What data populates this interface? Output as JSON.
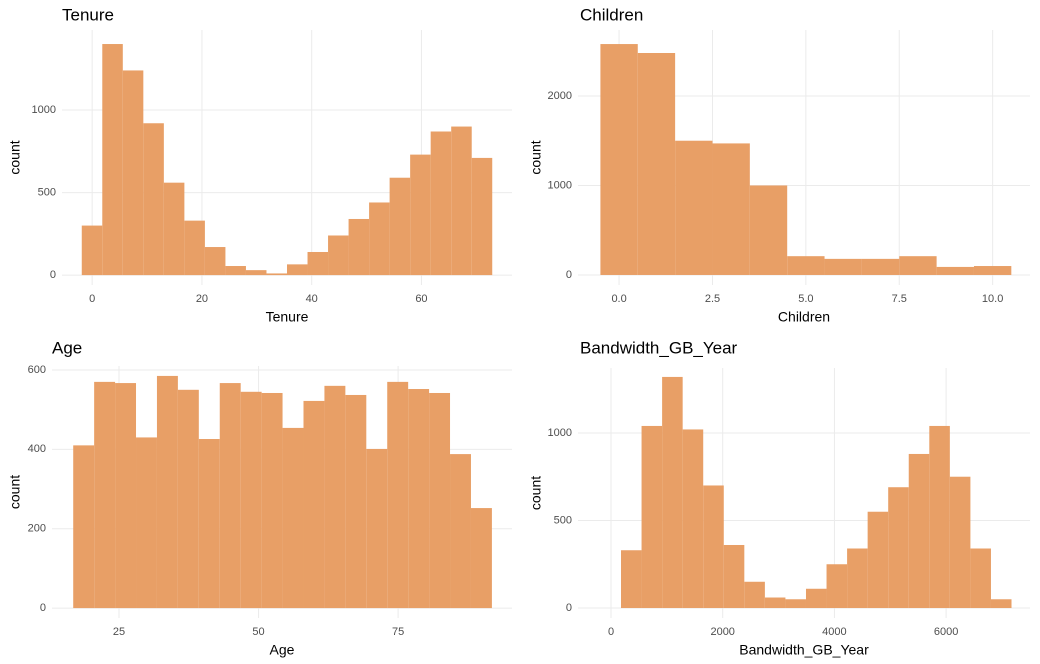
{
  "chart_data": [
    {
      "type": "histogram",
      "title": "Tenure",
      "x_label": "Tenure",
      "y_label": "count",
      "color": "#e89f66",
      "grid": true,
      "bins": [
        -1.9,
        1.84,
        5.58,
        9.32,
        13.06,
        16.8,
        20.54,
        24.28,
        28.02,
        31.76,
        35.5,
        39.24,
        42.98,
        46.72,
        50.46,
        54.2,
        57.94,
        61.68,
        65.42,
        69.16,
        72.9
      ],
      "values": [
        300,
        1400,
        1240,
        920,
        560,
        330,
        170,
        55,
        30,
        10,
        65,
        140,
        240,
        340,
        440,
        590,
        730,
        870,
        900,
        710
      ],
      "xlim": [
        -5.5,
        76.5
      ],
      "xticks": [
        0,
        20,
        40,
        60
      ],
      "ylim": [
        -60,
        1485
      ],
      "yticks": [
        0,
        500,
        1000
      ]
    },
    {
      "type": "histogram",
      "title": "Children",
      "x_label": "Children",
      "y_label": "count",
      "color": "#e89f66",
      "grid": true,
      "bins": [
        -0.5,
        0.5,
        1.5,
        2.5,
        3.5,
        4.5,
        5.5,
        6.5,
        7.5,
        8.5,
        9.5,
        10.5
      ],
      "values": [
        2580,
        2480,
        1500,
        1470,
        1000,
        210,
        180,
        180,
        210,
        90,
        100
      ],
      "xlim": [
        -1.1,
        11.0
      ],
      "xticks": [
        {
          "value": 0,
          "label": "0.0"
        },
        2.5,
        {
          "value": 5,
          "label": "5.0"
        },
        7.5,
        {
          "value": 10,
          "label": "10.0"
        }
      ],
      "ylim": [
        -112,
        2737
      ],
      "yticks": [
        0,
        1000,
        2000
      ]
    },
    {
      "type": "histogram",
      "title": "Age",
      "x_label": "Age",
      "y_label": "count",
      "color": "#e89f66",
      "grid": true,
      "bins": [
        16.8,
        20.55,
        24.3,
        28.05,
        31.8,
        35.55,
        39.3,
        43.05,
        46.8,
        50.55,
        54.3,
        58.05,
        61.8,
        65.55,
        69.3,
        73.05,
        76.8,
        80.55,
        84.3,
        88.05,
        91.8
      ],
      "values": [
        410,
        570,
        567,
        430,
        585,
        550,
        426,
        567,
        545,
        542,
        454,
        522,
        560,
        537,
        401,
        570,
        552,
        542,
        388,
        252
      ],
      "xlim": [
        13,
        95.4
      ],
      "xticks": [
        25,
        50,
        75
      ],
      "ylim": [
        -25,
        610
      ],
      "yticks": [
        0,
        200,
        400,
        600
      ]
    },
    {
      "type": "histogram",
      "title": "Bandwidth_GB_Year",
      "x_label": "Bandwidth_GB_Year",
      "y_label": "count",
      "color": "#e89f66",
      "grid": true,
      "bins": [
        179,
        547,
        915,
        1283,
        1651,
        2019,
        2387,
        2755,
        3123,
        3491,
        3859,
        4227,
        4595,
        4963,
        5331,
        5699,
        6067,
        6435,
        6803,
        7171
      ],
      "values": [
        330,
        1040,
        1320,
        1020,
        700,
        360,
        150,
        60,
        50,
        110,
        250,
        340,
        550,
        690,
        880,
        1040,
        750,
        340,
        50
      ],
      "xlim": [
        -591,
        7502
      ],
      "xticks": [
        0,
        2000,
        4000,
        6000
      ],
      "ylim": [
        -57,
        1371
      ],
      "yticks": [
        0,
        500,
        1000
      ]
    }
  ]
}
